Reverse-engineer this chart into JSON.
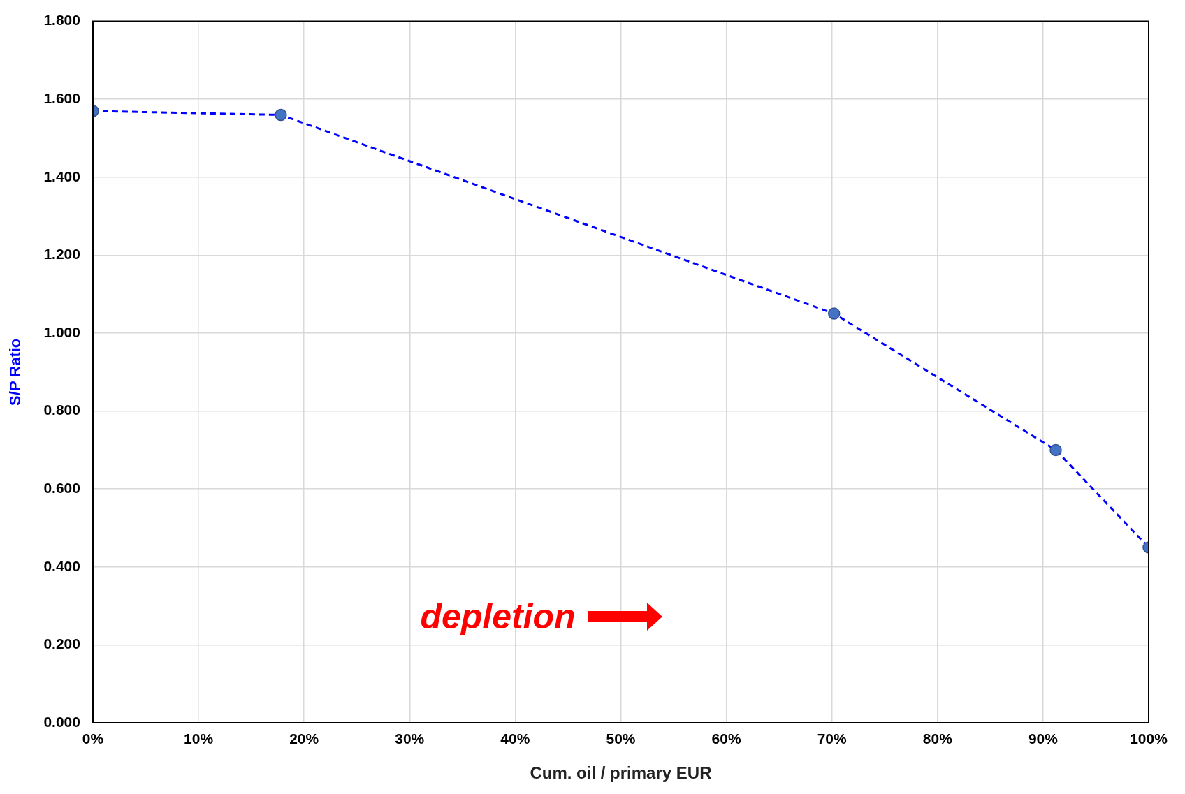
{
  "chart_data": {
    "type": "line",
    "xlabel": "Cum. oil / primary EUR",
    "ylabel": "S/P Ratio",
    "x": [
      0,
      17.8,
      70.2,
      91.2,
      100
    ],
    "series": [
      {
        "color": "#0000ff",
        "values": [
          1.57,
          1.56,
          1.05,
          0.7,
          0.45
        ]
      }
    ],
    "xlim": [
      0,
      100
    ],
    "xticks": [
      {
        "value": 0,
        "label": "0%"
      },
      {
        "value": 10,
        "label": "10%"
      },
      {
        "value": 20,
        "label": "20%"
      },
      {
        "value": 30,
        "label": "30%"
      },
      {
        "value": 40,
        "label": "40%"
      },
      {
        "value": 50,
        "label": "50%"
      },
      {
        "value": 60,
        "label": "60%"
      },
      {
        "value": 70,
        "label": "70%"
      },
      {
        "value": 80,
        "label": "80%"
      },
      {
        "value": 90,
        "label": "90%"
      },
      {
        "value": 100,
        "label": "100%"
      }
    ],
    "ylim": [
      0,
      1.8
    ],
    "yticks": [
      {
        "value": 0,
        "label": "0.000"
      },
      {
        "value": 0.2,
        "label": "0.200"
      },
      {
        "value": 0.4,
        "label": "0.400"
      },
      {
        "value": 0.6,
        "label": "0.600"
      },
      {
        "value": 0.8,
        "label": "0.800"
      },
      {
        "value": 1.0,
        "label": "1.000"
      },
      {
        "value": 1.2,
        "label": "1.200"
      },
      {
        "value": 1.4,
        "label": "1.400"
      },
      {
        "value": 1.6,
        "label": "1.600"
      },
      {
        "value": 1.8,
        "label": "1.800"
      }
    ],
    "annotations": [
      "depletion"
    ],
    "grid": true,
    "legend": false,
    "marker": "circle",
    "line_style": "dashed"
  }
}
